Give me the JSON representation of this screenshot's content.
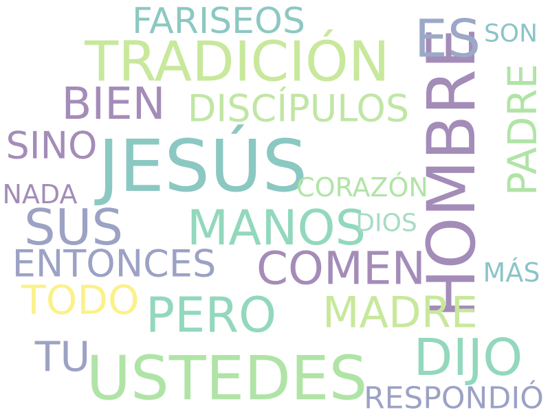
{
  "word_cloud": {
    "words": [
      {
        "text": "JESÚS",
        "color": "#8cc8c2"
      },
      {
        "text": "HOMBRE",
        "color": "#a48cb8"
      },
      {
        "text": "TRADICIÓN",
        "color": "#c8e89c"
      },
      {
        "text": "USTEDES",
        "color": "#b0e4a6"
      },
      {
        "text": "DIJO",
        "color": "#92d8bd"
      },
      {
        "text": "SUS",
        "color": "#9ca2c4"
      },
      {
        "text": "MANOS",
        "color": "#92d8bd"
      },
      {
        "text": "PERO",
        "color": "#92d8bd"
      },
      {
        "text": "COMEN",
        "color": "#a48cb8"
      },
      {
        "text": "BIEN",
        "color": "#a48cb8"
      },
      {
        "text": "MADRE",
        "color": "#c8e89c"
      },
      {
        "text": "ES",
        "color": "#9ca8c8"
      },
      {
        "text": "PADRE",
        "color": "#b0e4a6"
      },
      {
        "text": "DISCÍPULOS",
        "color": "#c0e6a4"
      },
      {
        "text": "FARISEOS",
        "color": "#8cc8c2"
      },
      {
        "text": "ENTONCES",
        "color": "#9ca2c4"
      },
      {
        "text": "TODO",
        "color": "#fbf18a"
      },
      {
        "text": "SINO",
        "color": "#a48cb8"
      },
      {
        "text": "TU",
        "color": "#9ca2c4"
      },
      {
        "text": "RESPONDIÓ",
        "color": "#9ca2c4"
      },
      {
        "text": "CORAZÓN",
        "color": "#b0e4a6"
      },
      {
        "text": "NADA",
        "color": "#a48cb8"
      },
      {
        "text": "DIOS",
        "color": "#a6dcc4"
      },
      {
        "text": "SON",
        "color": "#8cc4c8"
      },
      {
        "text": "MÁS",
        "color": "#8cc4c8"
      }
    ]
  }
}
